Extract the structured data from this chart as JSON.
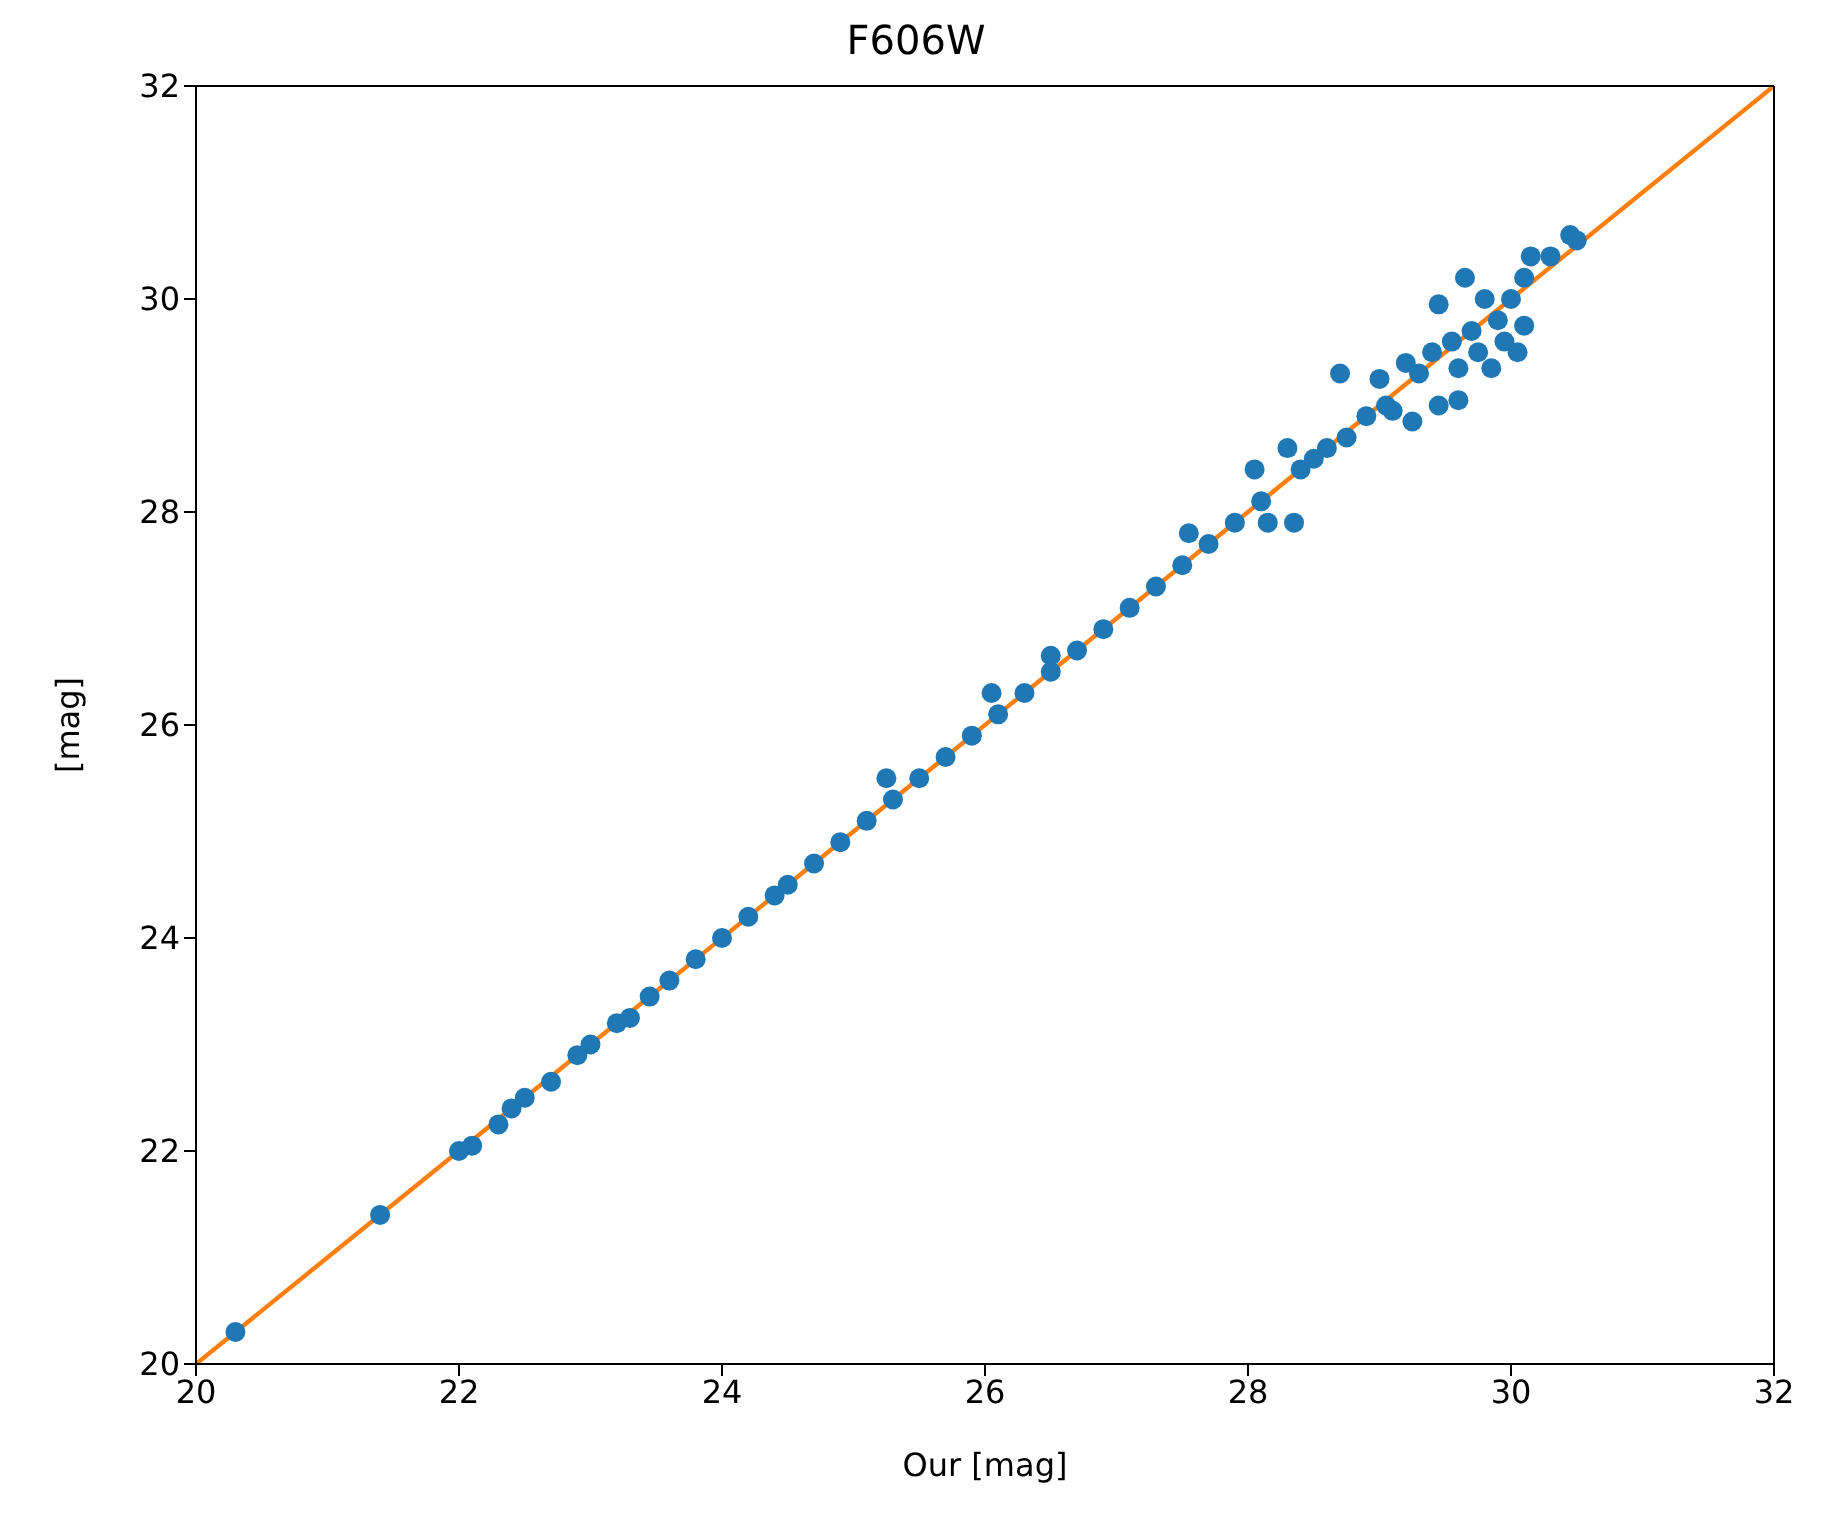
{
  "chart_data": {
    "type": "scatter",
    "title": "F606W",
    "xlabel": "Our [mag]",
    "ylabel": "[mag]",
    "xlim": [
      20,
      32
    ],
    "ylim": [
      20,
      32
    ],
    "xticks": [
      20,
      22,
      24,
      26,
      28,
      30,
      32
    ],
    "yticks": [
      20,
      22,
      24,
      26,
      28,
      30,
      32
    ],
    "grid": false,
    "marker": "circle",
    "series": [
      {
        "color": "#1f77b4",
        "x": [
          20.3,
          21.4,
          22.0,
          22.1,
          22.3,
          22.4,
          22.5,
          22.7,
          22.9,
          23.0,
          23.2,
          23.3,
          23.45,
          23.6,
          23.8,
          24.0,
          24.2,
          24.4,
          24.5,
          24.7,
          24.9,
          25.1,
          25.25,
          25.3,
          25.5,
          25.7,
          25.9,
          26.05,
          26.1,
          26.3,
          26.5,
          26.5,
          26.7,
          26.9,
          27.1,
          27.3,
          27.5,
          27.55,
          27.7,
          27.9,
          28.05,
          28.1,
          28.15,
          28.3,
          28.35,
          28.4,
          28.5,
          28.6,
          28.7,
          28.75,
          28.9,
          29.0,
          29.05,
          29.1,
          29.2,
          29.25,
          29.3,
          29.4,
          29.45,
          29.45,
          29.55,
          29.6,
          29.6,
          29.65,
          29.7,
          29.75,
          29.8,
          29.85,
          29.9,
          29.95,
          30.0,
          30.05,
          30.1,
          30.1,
          30.15,
          30.3,
          30.45,
          30.5
        ],
        "values": [
          20.3,
          21.4,
          22.0,
          22.05,
          22.25,
          22.4,
          22.5,
          22.65,
          22.9,
          23.0,
          23.2,
          23.25,
          23.45,
          23.6,
          23.8,
          24.0,
          24.2,
          24.4,
          24.5,
          24.7,
          24.9,
          25.1,
          25.5,
          25.3,
          25.5,
          25.7,
          25.9,
          26.3,
          26.1,
          26.3,
          26.65,
          26.5,
          26.7,
          26.9,
          27.1,
          27.3,
          27.5,
          27.8,
          27.7,
          27.9,
          28.4,
          28.1,
          27.9,
          28.6,
          27.9,
          28.4,
          28.5,
          28.6,
          29.3,
          28.7,
          28.9,
          29.25,
          29.0,
          28.95,
          29.4,
          28.85,
          29.3,
          29.5,
          29.95,
          29.0,
          29.6,
          29.05,
          29.35,
          30.2,
          29.7,
          29.5,
          30.0,
          29.35,
          29.8,
          29.6,
          30.0,
          29.5,
          29.75,
          30.2,
          30.4,
          30.4,
          30.6,
          30.55
        ]
      },
      {
        "type": "line",
        "color": "#ff7f0e",
        "x": [
          20,
          32
        ],
        "values": [
          20,
          32
        ],
        "marker": "none"
      }
    ]
  }
}
